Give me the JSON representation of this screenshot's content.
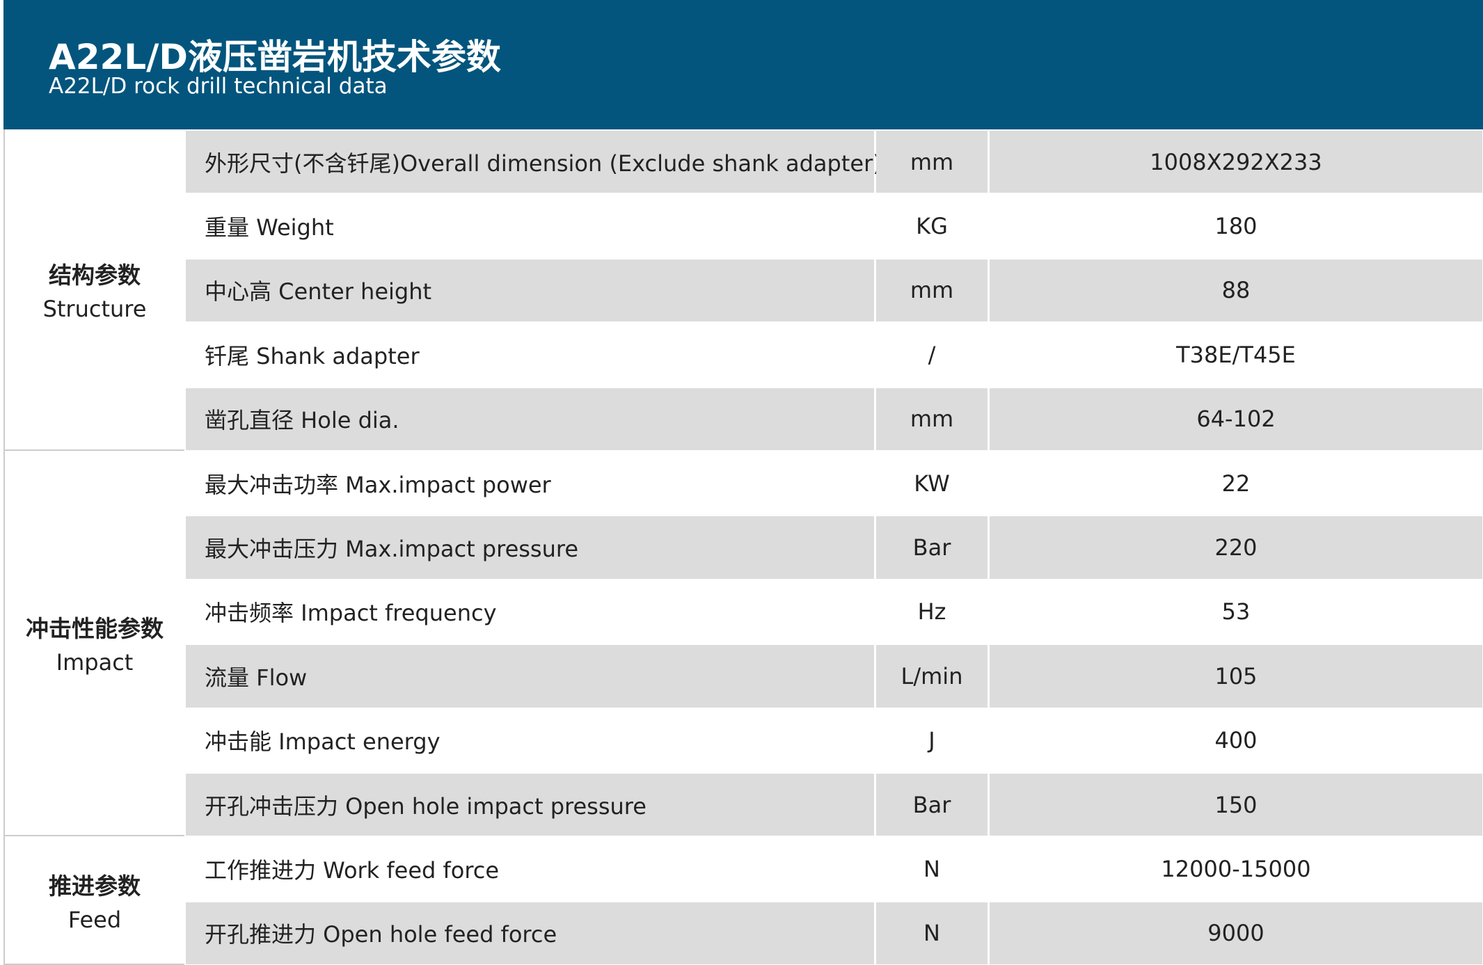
{
  "header": {
    "title": "A22L/D液压凿岩机技术参数",
    "subtitle": "A22L/D rock drill technical data"
  },
  "groups": [
    {
      "label_cn": "结构参数",
      "label_en": "Structure",
      "rows": [
        {
          "param": "外形尺寸(不含钎尾)Overall dimension (Exclude shank adapter)",
          "unit": "mm",
          "value": "1008X292X233"
        },
        {
          "param": "重量 Weight",
          "unit": "KG",
          "value": "180"
        },
        {
          "param": "中心高 Center height",
          "unit": "mm",
          "value": "88"
        },
        {
          "param": "钎尾 Shank adapter",
          "unit": "/",
          "value": "T38E/T45E"
        },
        {
          "param": "凿孔直径 Hole dia.",
          "unit": "mm",
          "value": "64-102"
        }
      ]
    },
    {
      "label_cn": "冲击性能参数",
      "label_en": "Impact",
      "rows": [
        {
          "param": "最大冲击功率 Max.impact power",
          "unit": "KW",
          "value": "22"
        },
        {
          "param": "最大冲击压力 Max.impact pressure",
          "unit": "Bar",
          "value": "220"
        },
        {
          "param": "冲击频率 Impact frequency",
          "unit": "Hz",
          "value": "53"
        },
        {
          "param": "流量 Flow",
          "unit": "L/min",
          "value": "105"
        },
        {
          "param": "冲击能 Impact energy",
          "unit": "J",
          "value": "400"
        },
        {
          "param": "开孔冲击压力 Open hole impact pressure",
          "unit": "Bar",
          "value": "150"
        }
      ]
    },
    {
      "label_cn": "推进参数",
      "label_en": "Feed",
      "rows": [
        {
          "param": "工作推进力 Work feed force",
          "unit": "N",
          "value": "12000-15000"
        },
        {
          "param": "开孔推进力 Open hole feed force",
          "unit": "N",
          "value": "9000"
        }
      ]
    }
  ]
}
